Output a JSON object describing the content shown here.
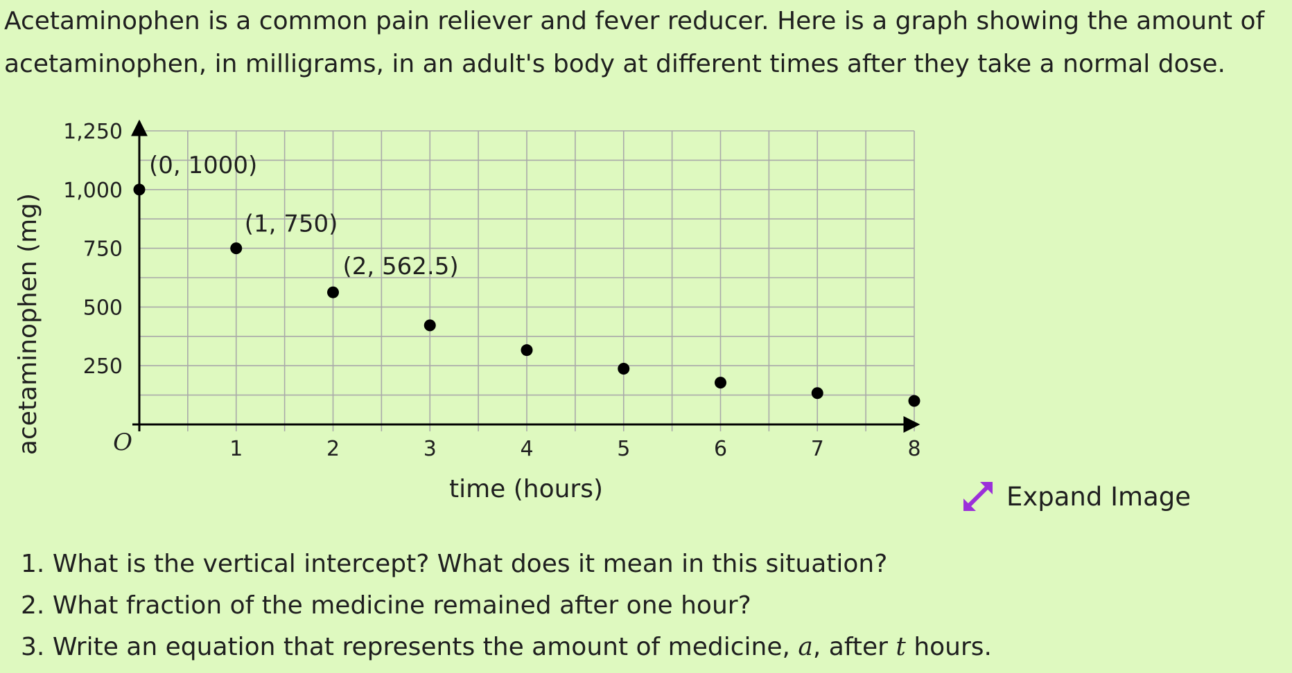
{
  "intro": {
    "line1": "Acetaminophen is a common pain reliever and fever reducer. Here is a graph showing the amount of",
    "line2": "acetaminophen, in milligrams, in an adult's body at different times after they take a normal dose."
  },
  "chart_data": {
    "type": "scatter",
    "xlabel": "time (hours)",
    "ylabel": "acetaminophen (mg)",
    "origin_label": "O",
    "xlim": [
      0,
      8
    ],
    "ylim": [
      0,
      1250
    ],
    "x_ticks": [
      "1",
      "2",
      "3",
      "4",
      "5",
      "6",
      "7",
      "8"
    ],
    "y_ticks": [
      "250",
      "500",
      "750",
      "1,000",
      "1,250"
    ],
    "grid": true,
    "points": [
      {
        "x": 0,
        "y": 1000,
        "label": "(0, 1000)"
      },
      {
        "x": 1,
        "y": 750,
        "label": "(1, 750)"
      },
      {
        "x": 2,
        "y": 562.5,
        "label": "(2, 562.5)"
      },
      {
        "x": 3,
        "y": 421.9,
        "label": ""
      },
      {
        "x": 4,
        "y": 316.4,
        "label": ""
      },
      {
        "x": 5,
        "y": 237.3,
        "label": ""
      },
      {
        "x": 6,
        "y": 178,
        "label": ""
      },
      {
        "x": 7,
        "y": 133.5,
        "label": ""
      },
      {
        "x": 8,
        "y": 100.1,
        "label": ""
      }
    ],
    "point_color": "#000000",
    "grid_color": "#a9a9a9"
  },
  "expand": {
    "label": "Expand Image",
    "icon": "expand-arrows-icon",
    "icon_color": "#9b30d9"
  },
  "questions": [
    {
      "number": "1.",
      "text": "What is the vertical intercept? What does it mean in this situation?"
    },
    {
      "number": "2.",
      "text": "What fraction of the medicine remained after one hour?"
    },
    {
      "number": "3.",
      "text_before": "Write an equation that represents the amount of medicine,",
      "var_a": "a",
      "text_middle": ", after",
      "var_t": "t",
      "text_after": "hours."
    }
  ]
}
